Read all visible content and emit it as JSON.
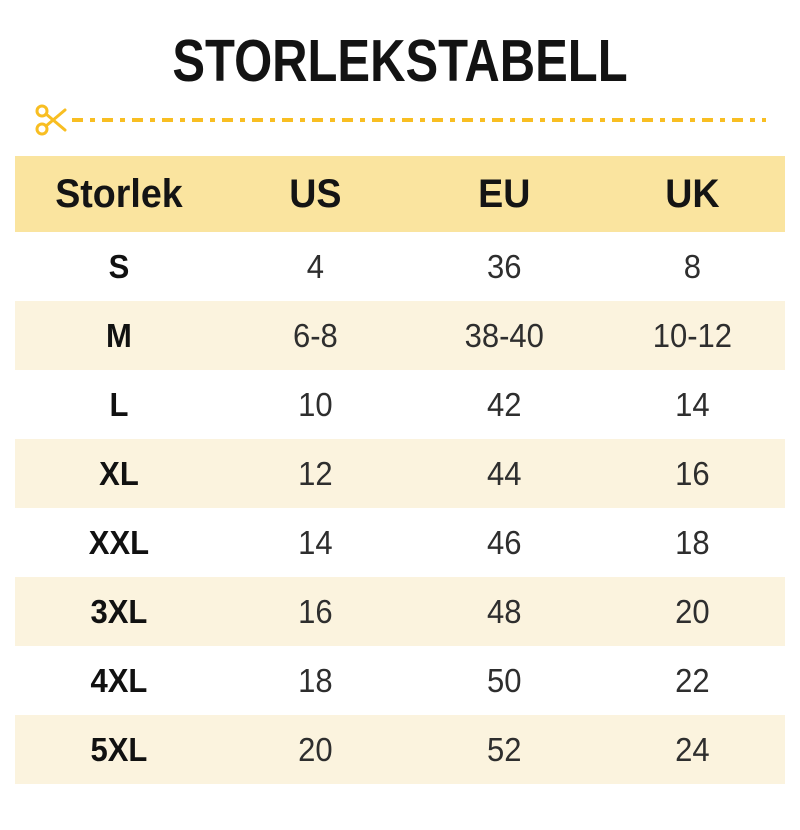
{
  "colors": {
    "accent": "#F8BE22",
    "header_bg": "#FAE49F",
    "row_alt_bg": "#FBF3DE",
    "title_text": "#131313",
    "cell_text": "#2E2E2E"
  },
  "header": {
    "title": "STORLEKSTABELL"
  },
  "cut_line": {
    "icon": "scissors-icon",
    "style": "dash-dot"
  },
  "chart_data": {
    "type": "table",
    "title": "STORLEKSTABELL",
    "columns": [
      "Storlek",
      "US",
      "EU",
      "UK"
    ],
    "rows": [
      [
        "S",
        "4",
        "36",
        "8"
      ],
      [
        "M",
        "6-8",
        "38-40",
        "10-12"
      ],
      [
        "L",
        "10",
        "42",
        "14"
      ],
      [
        "XL",
        "12",
        "44",
        "16"
      ],
      [
        "XXL",
        "14",
        "46",
        "18"
      ],
      [
        "3XL",
        "16",
        "48",
        "20"
      ],
      [
        "4XL",
        "18",
        "50",
        "22"
      ],
      [
        "5XL",
        "20",
        "52",
        "24"
      ]
    ]
  }
}
